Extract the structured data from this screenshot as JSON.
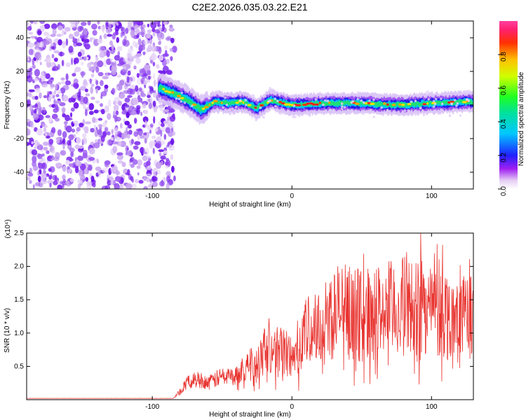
{
  "title": "C2E2.2026.035.03.22.E21",
  "colors": {
    "axis": "#000000",
    "snr_line": "#e8322e",
    "background": "#ffffff"
  },
  "chart_data": [
    {
      "type": "heatmap",
      "title": "C2E2.2026.035.03.22.E21",
      "xlabel": "Height of straight line (km)",
      "ylabel": "Frequency (Hz)",
      "xlim": [
        -190,
        130
      ],
      "ylim": [
        -50,
        50
      ],
      "xticks": [
        -100,
        0,
        100
      ],
      "yticks": [
        -40,
        -20,
        0,
        20,
        40
      ],
      "noise_region_x": [
        -190,
        -84
      ],
      "signal_track": [
        {
          "x": -95,
          "y": 10
        },
        {
          "x": -85,
          "y": 7
        },
        {
          "x": -75,
          "y": 3
        },
        {
          "x": -65,
          "y": -3
        },
        {
          "x": -55,
          "y": 2
        },
        {
          "x": -45,
          "y": 1
        },
        {
          "x": -35,
          "y": 2
        },
        {
          "x": -25,
          "y": -2
        },
        {
          "x": -15,
          "y": 3
        },
        {
          "x": 0,
          "y": 0
        },
        {
          "x": 25,
          "y": 1
        },
        {
          "x": 50,
          "y": 1
        },
        {
          "x": 75,
          "y": 0
        },
        {
          "x": 100,
          "y": 1
        },
        {
          "x": 130,
          "y": 2
        }
      ],
      "colorbar": {
        "label": "Normalized spectral amplitude",
        "range": [
          0,
          1
        ],
        "ticks": [
          0.0,
          0.2,
          0.4,
          0.6,
          0.8
        ]
      }
    },
    {
      "type": "line",
      "xlabel": "Height of straight line (km)",
      "ylabel": "SNR (10 * v/v)",
      "y_scale_note": "(x10⁴)",
      "xlim": [
        -190,
        130
      ],
      "ylim": [
        0,
        2.5
      ],
      "xticks": [
        -100,
        0,
        100
      ],
      "yticks": [
        0.5,
        1.0,
        1.5,
        2.0,
        2.5
      ],
      "series": [
        {
          "name": "SNR",
          "x": [
            -190,
            -150,
            -100,
            -85,
            -80,
            -75,
            -70,
            -65,
            -60,
            -55,
            -50,
            -45,
            -40,
            -35,
            -30,
            -25,
            -20,
            -15,
            -10,
            -5,
            0,
            5,
            10,
            15,
            20,
            25,
            30,
            35,
            40,
            45,
            50,
            55,
            60,
            65,
            70,
            75,
            80,
            85,
            90,
            95,
            100,
            105,
            110,
            115,
            120,
            125,
            130
          ],
          "values": [
            0.02,
            0.02,
            0.02,
            0.02,
            0.12,
            0.25,
            0.3,
            0.3,
            0.25,
            0.3,
            0.35,
            0.35,
            0.35,
            0.5,
            0.5,
            0.6,
            0.8,
            0.8,
            0.7,
            0.75,
            0.6,
            0.85,
            1.0,
            1.05,
            1.1,
            1.2,
            1.3,
            1.35,
            1.3,
            1.3,
            1.25,
            1.3,
            1.3,
            1.35,
            1.35,
            1.35,
            1.4,
            1.4,
            1.4,
            1.45,
            1.35,
            1.3,
            1.3,
            1.2,
            1.2,
            1.25,
            1.3
          ]
        }
      ]
    }
  ]
}
